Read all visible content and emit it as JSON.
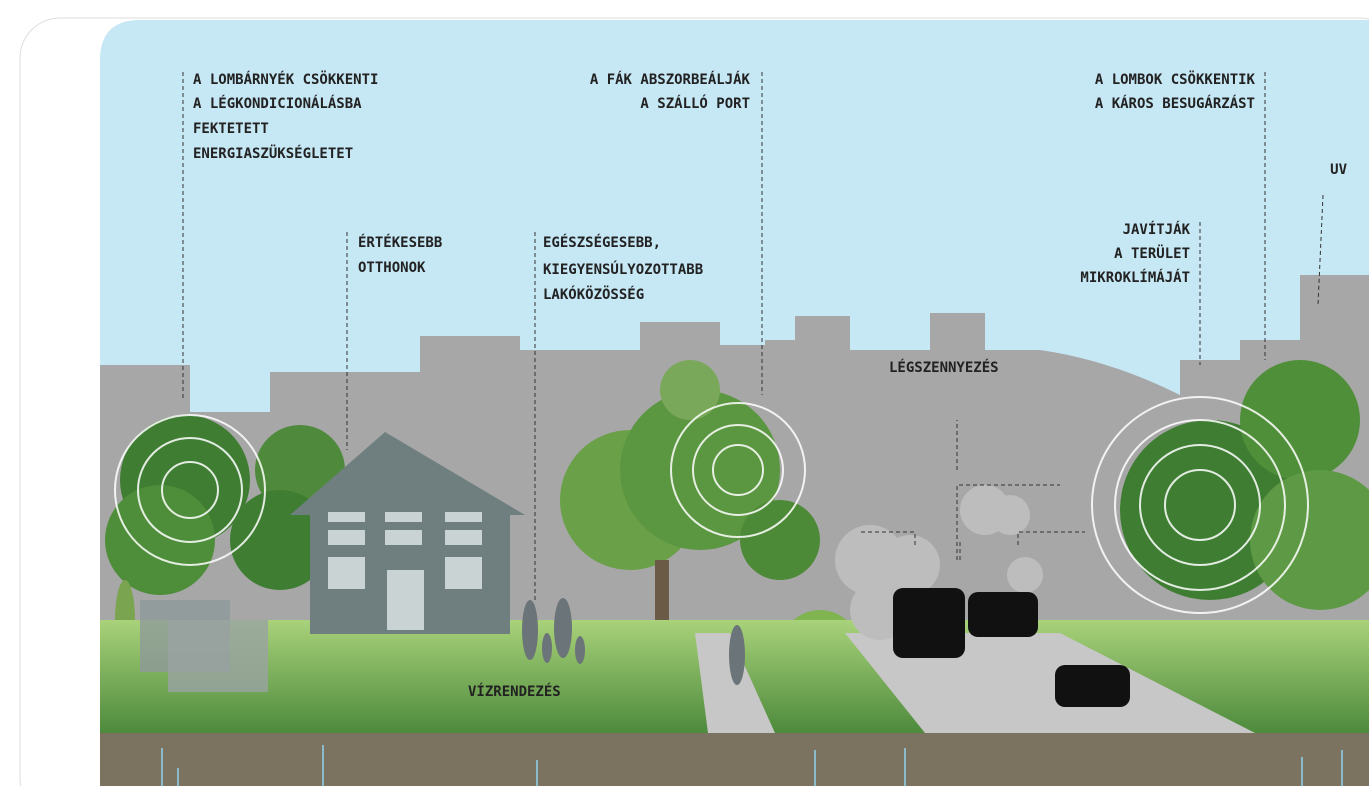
{
  "annotations": [
    {
      "lines": [
        "A LOMBÁRNYÉK CSÖKKENTI",
        "A LÉGKONDICIONÁLÁSBA",
        "FEKTETETT",
        "ENERGIASZÜKSÉGLETET"
      ]
    },
    {
      "lines": [
        "A FÁK ABSZORBEÁLJÁK",
        "A SZÁLLÓ PORT"
      ]
    },
    {
      "lines": [
        "A LOMBOK CSÖKKENTIK",
        "A KÁROS BESUGÁRZÁST"
      ]
    },
    {
      "lines": [
        "UV"
      ]
    },
    {
      "lines": [
        "ÉRTÉKESEBB",
        "OTTHONOK"
      ]
    },
    {
      "lines": [
        "EGÉSZSÉGESEBB,",
        "KIEGYENSÚLYOZOTTABB",
        "LAKÓKÖZÖSSÉG"
      ]
    },
    {
      "lines": [
        "JAVÍTJÁK",
        "A TERÜLET",
        "MIKROKLÍMÁJÁT"
      ]
    },
    {
      "lines": [
        "LÉGSZENNYEZÉS"
      ]
    },
    {
      "lines": [
        "VÍZRENDEZÉS"
      ]
    }
  ]
}
